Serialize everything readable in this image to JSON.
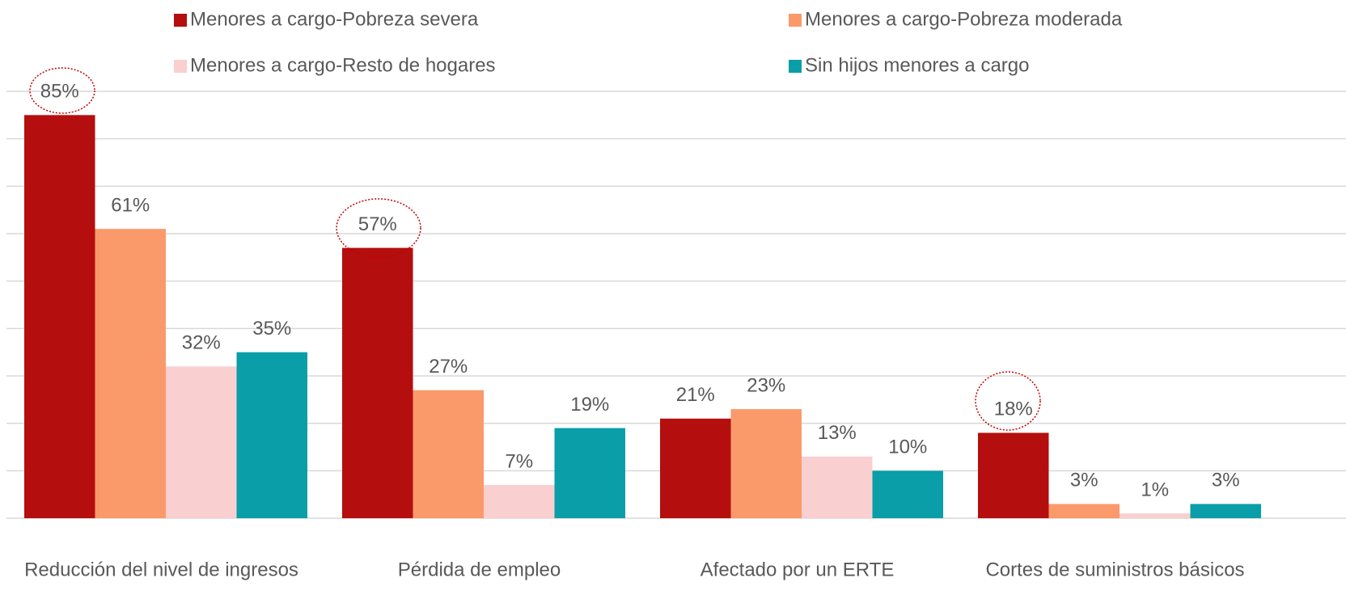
{
  "chart_data": {
    "type": "bar",
    "categories": [
      "Reducción del nivel de ingresos",
      "Pérdida de empleo",
      "Afectado por un ERTE",
      "Cortes de suministros básicos"
    ],
    "series": [
      {
        "name": "Menores a cargo-Pobreza severa",
        "color": "#b50e0e",
        "values": [
          85,
          57,
          21,
          18
        ],
        "value_labels": [
          "85%",
          "57%",
          "21%",
          "18%"
        ]
      },
      {
        "name": "Menores a cargo-Pobreza moderada",
        "color": "#fa9a6b",
        "values": [
          61,
          27,
          23,
          3
        ],
        "value_labels": [
          "61%",
          "27%",
          "23%",
          "3%"
        ]
      },
      {
        "name": "Menores a cargo-Resto de hogares",
        "color": "#f9cfcf",
        "values": [
          32,
          7,
          13,
          1
        ],
        "value_labels": [
          "32%",
          "7%",
          "13%",
          "1%"
        ]
      },
      {
        "name": "Sin hijos menores a cargo",
        "color": "#0a9ea8",
        "values": [
          35,
          19,
          10,
          3
        ],
        "value_labels": [
          "35%",
          "19%",
          "10%",
          "3%"
        ]
      }
    ],
    "ylim": [
      0,
      90
    ],
    "yticks": [
      0,
      10,
      20,
      30,
      40,
      50,
      60,
      70,
      80,
      90
    ],
    "grid": true,
    "legend": "top"
  }
}
